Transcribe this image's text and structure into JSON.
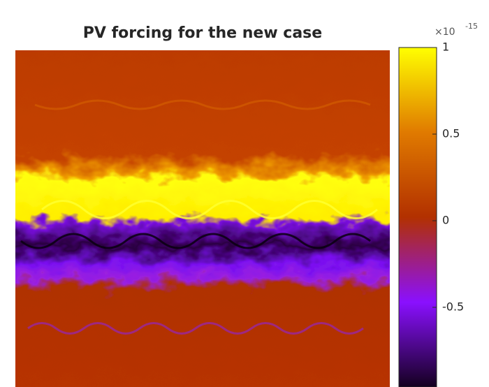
{
  "chart_data": {
    "type": "heatmap",
    "title": "PV forcing for the new case",
    "colorbar_multiplier": "×10",
    "colorbar_exponent": "-15",
    "clim": [
      -0.96,
      1
    ],
    "cticks": [
      1,
      0.5,
      0,
      -0.5
    ],
    "colormap": [
      "#14001f",
      "#8a10ff",
      "#b23000",
      "#e07a00",
      "#ffff00"
    ]
  }
}
